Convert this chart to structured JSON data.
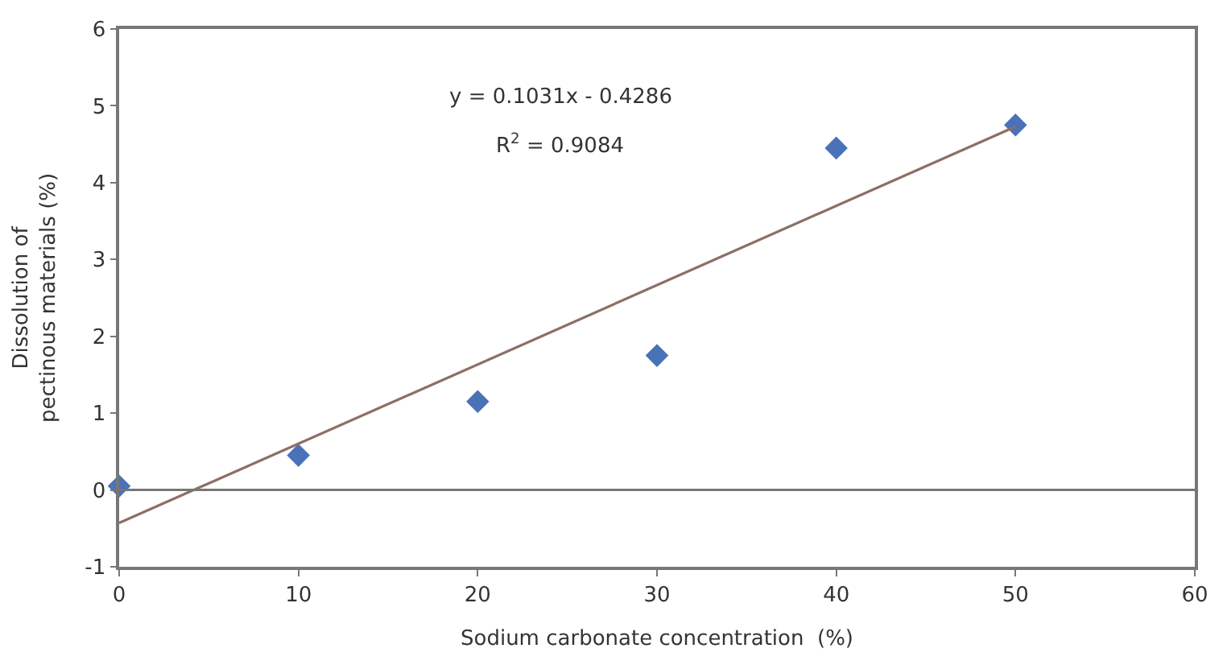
{
  "chart_data": {
    "type": "scatter",
    "xlabel": "Sodium carbonate concentration  (%)",
    "ylabel": "Dissolution of pectinous materials (%)",
    "x": [
      0,
      10,
      20,
      30,
      40,
      50
    ],
    "series": [
      {
        "color": "#4a72b8",
        "marker": "diamond",
        "values": [
          0.05,
          0.45,
          1.15,
          1.75,
          4.45,
          4.75
        ]
      },
      {
        "type": "line",
        "color": "#8c6f64",
        "marker": "none",
        "x": [
          0,
          50
        ],
        "values": [
          -0.43,
          4.73
        ]
      }
    ],
    "annotations": [
      "y = 0.1031x - 0.4286",
      "R$^{2}$ = 0.9084"
    ],
    "xlim": [
      0,
      60
    ],
    "xticks": [
      0,
      10,
      20,
      30,
      40,
      50,
      60
    ],
    "ylim": [
      -1,
      6
    ],
    "yticks": [
      -1,
      0,
      1,
      2,
      3,
      4,
      5,
      6
    ],
    "ref_lines": [
      {
        "axis": "y",
        "value": 0,
        "color": "#777777"
      }
    ],
    "grid": false,
    "legend": false
  }
}
